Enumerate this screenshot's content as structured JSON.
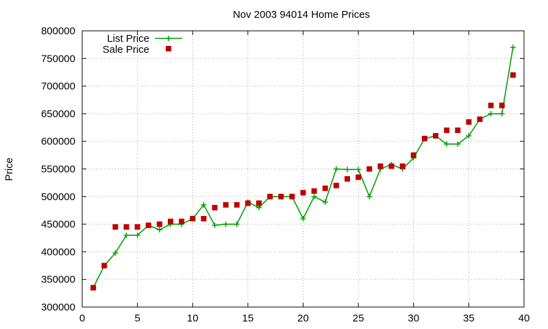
{
  "chart_data": {
    "type": "line",
    "title": "Nov 2003 94014 Home Prices",
    "xlabel": "",
    "ylabel": "Price",
    "xlim": [
      0,
      40
    ],
    "ylim": [
      300000,
      800000
    ],
    "xticks": [
      0,
      5,
      10,
      15,
      20,
      25,
      30,
      35,
      40
    ],
    "yticks": [
      300000,
      350000,
      400000,
      450000,
      500000,
      550000,
      600000,
      650000,
      700000,
      750000,
      800000
    ],
    "grid": true,
    "legend_position": "top-left",
    "series": [
      {
        "name": "List Price",
        "style": "line-plus",
        "color": "#00a000",
        "x": [
          1,
          2,
          3,
          4,
          5,
          6,
          7,
          8,
          9,
          10,
          11,
          12,
          13,
          14,
          15,
          16,
          17,
          18,
          19,
          20,
          21,
          22,
          23,
          24,
          25,
          26,
          27,
          28,
          29,
          30,
          31,
          32,
          33,
          34,
          35,
          36,
          37,
          38,
          39
        ],
        "y": [
          335000,
          375000,
          398000,
          430000,
          430000,
          448000,
          440000,
          450000,
          450000,
          460000,
          485000,
          448000,
          450000,
          450000,
          490000,
          480000,
          500000,
          500000,
          500000,
          460000,
          500000,
          490000,
          550000,
          549000,
          549000,
          500000,
          550000,
          558000,
          550000,
          570000,
          605000,
          610000,
          595000,
          595000,
          610000,
          640000,
          650000,
          650000,
          770000
        ]
      },
      {
        "name": "Sale Price",
        "style": "square-points",
        "color": "#c00000",
        "x": [
          1,
          2,
          3,
          4,
          5,
          6,
          7,
          8,
          9,
          10,
          11,
          12,
          13,
          14,
          15,
          16,
          17,
          18,
          19,
          20,
          21,
          22,
          23,
          24,
          25,
          26,
          27,
          28,
          29,
          30,
          31,
          32,
          33,
          34,
          35,
          36,
          37,
          38,
          39
        ],
        "y": [
          335000,
          375000,
          445000,
          445000,
          445000,
          448000,
          450000,
          455000,
          455000,
          460000,
          460000,
          480000,
          485000,
          485000,
          488000,
          488000,
          500000,
          500000,
          500000,
          507000,
          510000,
          515000,
          520000,
          532000,
          535000,
          550000,
          555000,
          555000,
          555000,
          575000,
          605000,
          610000,
          620000,
          620000,
          635000,
          640000,
          665000,
          665000,
          720000
        ]
      }
    ]
  }
}
